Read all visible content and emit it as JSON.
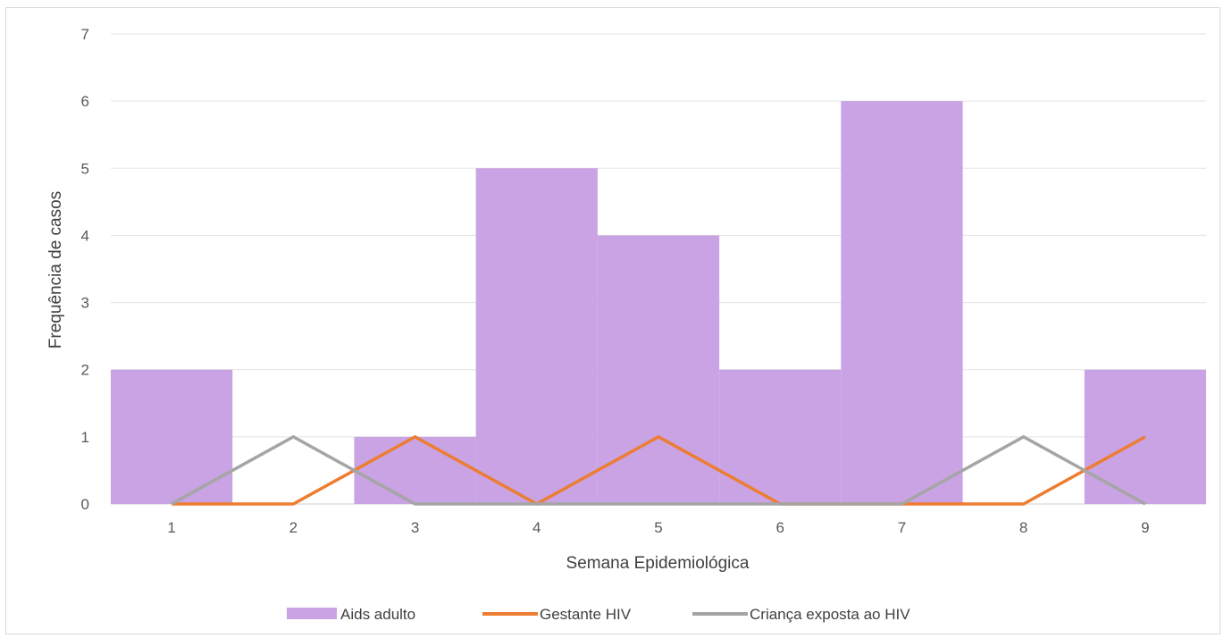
{
  "chart_data": {
    "type": "bar",
    "title": "",
    "xlabel": "Semana Epidemiológica",
    "ylabel": "Frequência de casos",
    "categories": [
      "1",
      "2",
      "3",
      "4",
      "5",
      "6",
      "7",
      "8",
      "9"
    ],
    "ylim": [
      0,
      7
    ],
    "yticks": [
      "0",
      "1",
      "2",
      "3",
      "4",
      "5",
      "6",
      "7"
    ],
    "grid": true,
    "legend_position": "bottom",
    "series": [
      {
        "name": "Aids adulto",
        "kind": "bar",
        "color": "#c9a3e3",
        "values": [
          2,
          0,
          1,
          5,
          4,
          2,
          6,
          0,
          2
        ]
      },
      {
        "name": "Gestante HIV",
        "kind": "line",
        "color": "#ed7d31",
        "values": [
          0,
          0,
          1,
          0,
          1,
          0,
          0,
          0,
          1
        ]
      },
      {
        "name": "Criança exposta ao HIV",
        "kind": "line",
        "color": "#a5a5a5",
        "values": [
          0,
          1,
          0,
          0,
          0,
          0,
          0,
          1,
          0
        ]
      }
    ]
  }
}
